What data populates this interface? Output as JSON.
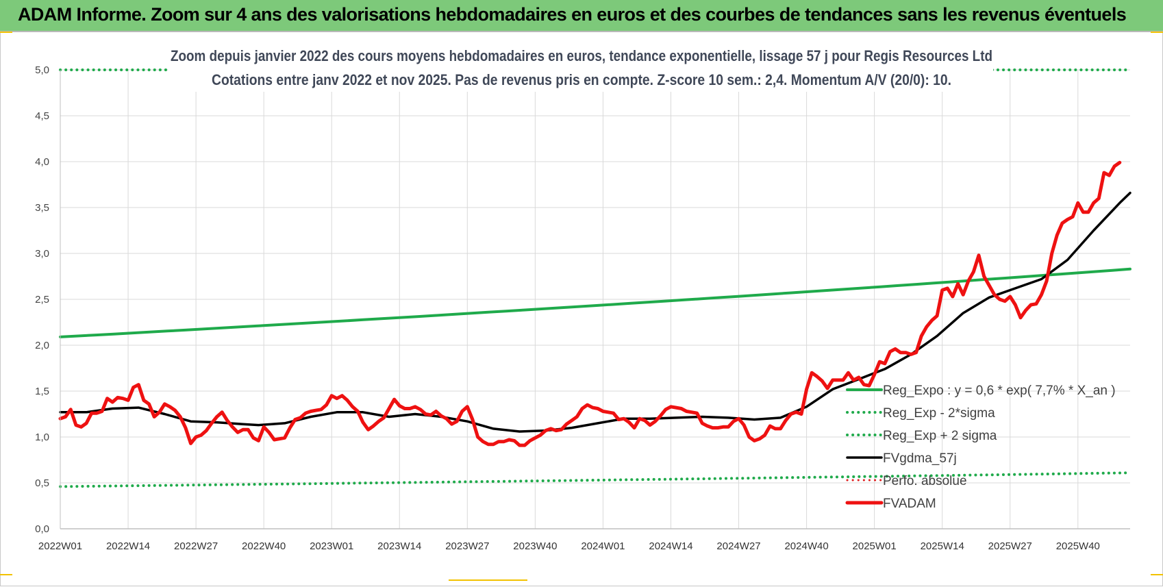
{
  "banner": {
    "title": "ADAM Informe. Zoom sur 4 ans des valorisations hebdomadaires en euros et des courbes de tendances sans les revenus éventuels"
  },
  "chart_data": {
    "type": "line",
    "title": "Zoom depuis janvier 2022 des cours moyens hebdomadaires en euros, tendance exponentielle, lissage 57 j pour Regis Resources Ltd",
    "subtitle": "Cotations entre janv 2022 et nov 2025. Pas de revenus pris en compte. Z-score 10 sem.: 2,4. Momentum A/V (20/0): 10.",
    "xlabel": "",
    "ylabel": "",
    "ylim": [
      0,
      5
    ],
    "y_ticks": [
      "0,0",
      "0,5",
      "1,0",
      "1,5",
      "2,0",
      "2,5",
      "3,0",
      "3,5",
      "4,0",
      "4,5",
      "5,0"
    ],
    "x_ticks": [
      "2022W01",
      "2022W14",
      "2022W27",
      "2022W40",
      "2023W01",
      "2023W14",
      "2023W27",
      "2023W40",
      "2024W01",
      "2024W14",
      "2024W27",
      "2024W40",
      "2025W01",
      "2025W14",
      "2025W27",
      "2025W40"
    ],
    "x_weeks": [
      0,
      13,
      26,
      39,
      52,
      65,
      78,
      91,
      104,
      117,
      130,
      143,
      156,
      169,
      182,
      195
    ],
    "x_range_weeks": [
      0,
      205
    ],
    "grid": true,
    "legend_position": "right-inside",
    "colors": {
      "reg_expo": "#1faa4b",
      "sigma": "#1faa4b",
      "fvgdma": "#000000",
      "perfo": "#e02020",
      "fvadam": "#ee1111"
    },
    "series": [
      {
        "name": "Reg_Expo : y = 0,6 * exp( 7,7% *  X_an )",
        "style": "solid-thick",
        "points": [
          [
            0,
            2.09
          ],
          [
            205,
            2.83
          ]
        ]
      },
      {
        "name": "Reg_Exp - 2*sigma",
        "style": "dotted",
        "points": [
          [
            0,
            0.46
          ],
          [
            205,
            0.61
          ]
        ]
      },
      {
        "name": "Reg_Exp + 2 sigma",
        "style": "dotted",
        "points": [
          [
            0,
            5.0
          ],
          [
            205,
            5.0
          ]
        ]
      },
      {
        "name": "FVgdma_57j",
        "style": "solid",
        "points": [
          [
            0,
            1.27
          ],
          [
            5,
            1.27
          ],
          [
            10,
            1.31
          ],
          [
            15,
            1.32
          ],
          [
            20,
            1.25
          ],
          [
            25,
            1.17
          ],
          [
            30,
            1.16
          ],
          [
            35,
            1.14
          ],
          [
            38,
            1.13
          ],
          [
            43,
            1.15
          ],
          [
            48,
            1.22
          ],
          [
            53,
            1.27
          ],
          [
            58,
            1.27
          ],
          [
            63,
            1.22
          ],
          [
            68,
            1.25
          ],
          [
            73,
            1.22
          ],
          [
            78,
            1.17
          ],
          [
            83,
            1.09
          ],
          [
            88,
            1.06
          ],
          [
            93,
            1.07
          ],
          [
            98,
            1.1
          ],
          [
            103,
            1.15
          ],
          [
            108,
            1.2
          ],
          [
            113,
            1.2
          ],
          [
            118,
            1.21
          ],
          [
            123,
            1.22
          ],
          [
            128,
            1.21
          ],
          [
            133,
            1.19
          ],
          [
            138,
            1.21
          ],
          [
            143,
            1.33
          ],
          [
            148,
            1.52
          ],
          [
            153,
            1.63
          ],
          [
            158,
            1.74
          ],
          [
            163,
            1.9
          ],
          [
            168,
            2.1
          ],
          [
            173,
            2.35
          ],
          [
            178,
            2.52
          ],
          [
            183,
            2.62
          ],
          [
            188,
            2.72
          ],
          [
            193,
            2.93
          ],
          [
            198,
            3.25
          ],
          [
            203,
            3.55
          ],
          [
            205,
            3.66
          ]
        ]
      },
      {
        "name": "Perfo. absolue",
        "style": "dotted",
        "points": []
      },
      {
        "name": "FVADAM",
        "style": "solid-thick",
        "points": [
          [
            0,
            1.2
          ],
          [
            1,
            1.22
          ],
          [
            2,
            1.3
          ],
          [
            3,
            1.13
          ],
          [
            4,
            1.11
          ],
          [
            5,
            1.15
          ],
          [
            6,
            1.26
          ],
          [
            7,
            1.26
          ],
          [
            8,
            1.28
          ],
          [
            9,
            1.42
          ],
          [
            10,
            1.38
          ],
          [
            11,
            1.43
          ],
          [
            12,
            1.42
          ],
          [
            13,
            1.4
          ],
          [
            14,
            1.54
          ],
          [
            15,
            1.57
          ],
          [
            16,
            1.4
          ],
          [
            17,
            1.36
          ],
          [
            18,
            1.22
          ],
          [
            19,
            1.27
          ],
          [
            20,
            1.36
          ],
          [
            21,
            1.33
          ],
          [
            22,
            1.29
          ],
          [
            23,
            1.22
          ],
          [
            24,
            1.1
          ],
          [
            25,
            0.93
          ],
          [
            26,
            1.0
          ],
          [
            27,
            1.02
          ],
          [
            28,
            1.07
          ],
          [
            29,
            1.15
          ],
          [
            30,
            1.22
          ],
          [
            31,
            1.27
          ],
          [
            32,
            1.18
          ],
          [
            33,
            1.11
          ],
          [
            34,
            1.05
          ],
          [
            35,
            1.08
          ],
          [
            36,
            1.08
          ],
          [
            37,
            0.99
          ],
          [
            38,
            0.96
          ],
          [
            39,
            1.11
          ],
          [
            40,
            1.05
          ],
          [
            41,
            0.97
          ],
          [
            42,
            0.98
          ],
          [
            43,
            0.99
          ],
          [
            44,
            1.1
          ],
          [
            45,
            1.19
          ],
          [
            46,
            1.21
          ],
          [
            47,
            1.26
          ],
          [
            48,
            1.28
          ],
          [
            49,
            1.29
          ],
          [
            50,
            1.3
          ],
          [
            51,
            1.35
          ],
          [
            52,
            1.45
          ],
          [
            53,
            1.42
          ],
          [
            54,
            1.45
          ],
          [
            55,
            1.4
          ],
          [
            56,
            1.33
          ],
          [
            57,
            1.28
          ],
          [
            58,
            1.16
          ],
          [
            59,
            1.08
          ],
          [
            60,
            1.12
          ],
          [
            61,
            1.17
          ],
          [
            62,
            1.21
          ],
          [
            63,
            1.31
          ],
          [
            64,
            1.41
          ],
          [
            65,
            1.34
          ],
          [
            66,
            1.31
          ],
          [
            67,
            1.31
          ],
          [
            68,
            1.33
          ],
          [
            69,
            1.3
          ],
          [
            70,
            1.25
          ],
          [
            71,
            1.24
          ],
          [
            72,
            1.28
          ],
          [
            73,
            1.23
          ],
          [
            74,
            1.2
          ],
          [
            75,
            1.14
          ],
          [
            76,
            1.17
          ],
          [
            77,
            1.28
          ],
          [
            78,
            1.33
          ],
          [
            79,
            1.19
          ],
          [
            80,
            1.0
          ],
          [
            81,
            0.95
          ],
          [
            82,
            0.92
          ],
          [
            83,
            0.92
          ],
          [
            84,
            0.95
          ],
          [
            85,
            0.95
          ],
          [
            86,
            0.97
          ],
          [
            87,
            0.96
          ],
          [
            88,
            0.91
          ],
          [
            89,
            0.91
          ],
          [
            90,
            0.96
          ],
          [
            91,
            0.99
          ],
          [
            92,
            1.02
          ],
          [
            93,
            1.07
          ],
          [
            94,
            1.09
          ],
          [
            95,
            1.07
          ],
          [
            96,
            1.08
          ],
          [
            97,
            1.14
          ],
          [
            98,
            1.18
          ],
          [
            99,
            1.22
          ],
          [
            100,
            1.31
          ],
          [
            101,
            1.35
          ],
          [
            102,
            1.32
          ],
          [
            103,
            1.31
          ],
          [
            104,
            1.28
          ],
          [
            105,
            1.27
          ],
          [
            106,
            1.26
          ],
          [
            107,
            1.19
          ],
          [
            108,
            1.2
          ],
          [
            109,
            1.16
          ],
          [
            110,
            1.1
          ],
          [
            111,
            1.2
          ],
          [
            112,
            1.18
          ],
          [
            113,
            1.13
          ],
          [
            114,
            1.17
          ],
          [
            115,
            1.23
          ],
          [
            116,
            1.3
          ],
          [
            117,
            1.33
          ],
          [
            118,
            1.32
          ],
          [
            119,
            1.31
          ],
          [
            120,
            1.28
          ],
          [
            121,
            1.27
          ],
          [
            122,
            1.26
          ],
          [
            123,
            1.15
          ],
          [
            124,
            1.12
          ],
          [
            125,
            1.1
          ],
          [
            126,
            1.1
          ],
          [
            127,
            1.11
          ],
          [
            128,
            1.11
          ],
          [
            129,
            1.17
          ],
          [
            130,
            1.2
          ],
          [
            131,
            1.13
          ],
          [
            132,
            1.0
          ],
          [
            133,
            0.96
          ],
          [
            134,
            0.98
          ],
          [
            135,
            1.02
          ],
          [
            136,
            1.12
          ],
          [
            137,
            1.09
          ],
          [
            138,
            1.09
          ],
          [
            139,
            1.18
          ],
          [
            140,
            1.25
          ],
          [
            141,
            1.27
          ],
          [
            142,
            1.25
          ],
          [
            143,
            1.52
          ],
          [
            144,
            1.7
          ],
          [
            145,
            1.66
          ],
          [
            146,
            1.61
          ],
          [
            147,
            1.53
          ],
          [
            148,
            1.62
          ],
          [
            149,
            1.62
          ],
          [
            150,
            1.62
          ],
          [
            151,
            1.7
          ],
          [
            152,
            1.62
          ],
          [
            153,
            1.65
          ],
          [
            154,
            1.57
          ],
          [
            155,
            1.56
          ],
          [
            156,
            1.68
          ],
          [
            157,
            1.82
          ],
          [
            158,
            1.8
          ],
          [
            159,
            1.93
          ],
          [
            160,
            1.96
          ],
          [
            161,
            1.92
          ],
          [
            162,
            1.92
          ],
          [
            163,
            1.9
          ],
          [
            164,
            1.92
          ],
          [
            165,
            2.1
          ],
          [
            166,
            2.2
          ],
          [
            167,
            2.27
          ],
          [
            168,
            2.32
          ],
          [
            169,
            2.6
          ],
          [
            170,
            2.62
          ],
          [
            171,
            2.53
          ],
          [
            172,
            2.67
          ],
          [
            173,
            2.55
          ],
          [
            174,
            2.7
          ],
          [
            175,
            2.8
          ],
          [
            176,
            2.98
          ],
          [
            177,
            2.75
          ],
          [
            178,
            2.65
          ],
          [
            179,
            2.55
          ],
          [
            180,
            2.5
          ],
          [
            181,
            2.48
          ],
          [
            182,
            2.53
          ],
          [
            183,
            2.44
          ],
          [
            184,
            2.3
          ],
          [
            185,
            2.38
          ],
          [
            186,
            2.44
          ],
          [
            187,
            2.45
          ],
          [
            188,
            2.55
          ],
          [
            189,
            2.7
          ],
          [
            190,
            3.0
          ],
          [
            191,
            3.2
          ],
          [
            192,
            3.33
          ],
          [
            193,
            3.37
          ],
          [
            194,
            3.4
          ],
          [
            195,
            3.55
          ],
          [
            196,
            3.45
          ],
          [
            197,
            3.45
          ],
          [
            198,
            3.55
          ],
          [
            199,
            3.6
          ],
          [
            200,
            3.88
          ],
          [
            201,
            3.85
          ],
          [
            202,
            3.95
          ],
          [
            203,
            3.99
          ]
        ]
      }
    ]
  }
}
